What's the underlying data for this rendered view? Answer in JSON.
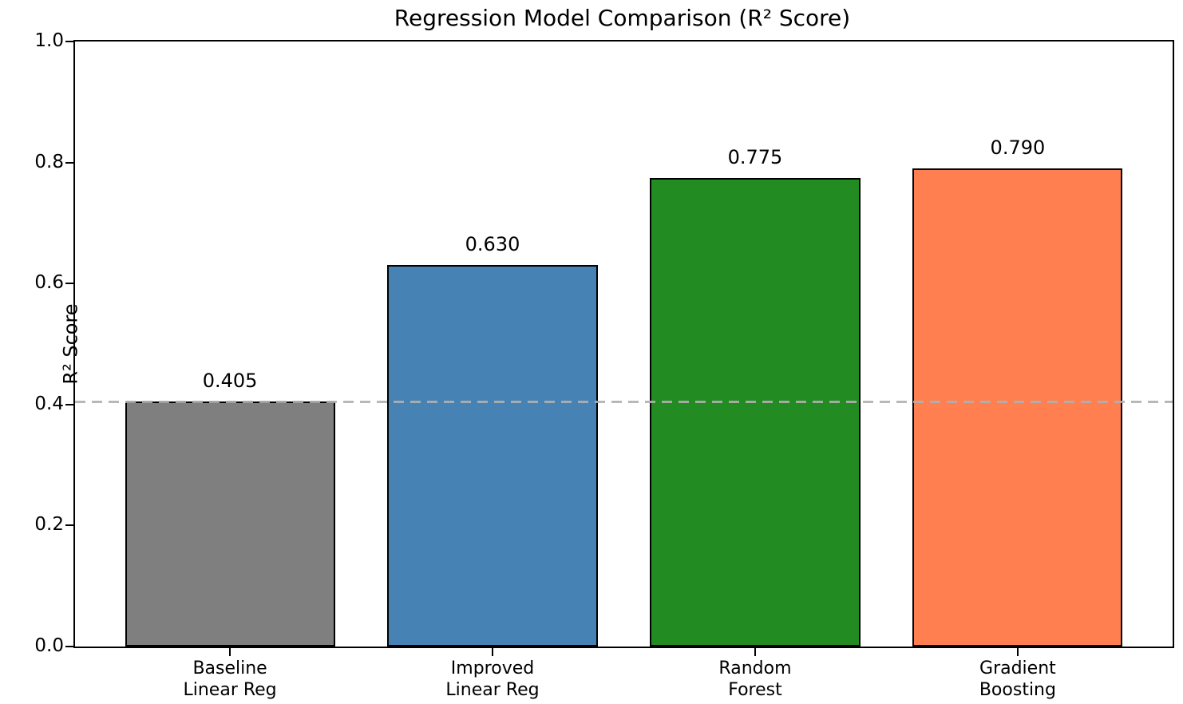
{
  "figure": {
    "background_color": "#ffffff",
    "spine_color": "#000000"
  },
  "chart_data": {
    "type": "bar",
    "title": "Regression Model Comparison (R² Score)",
    "ylabel": "R² Score",
    "xlabel": "",
    "ylim": [
      0.0,
      1.0
    ],
    "yticks": [
      "0.0",
      "0.2",
      "0.4",
      "0.6",
      "0.8",
      "1.0"
    ],
    "grid": false,
    "categories": [
      "Baseline\nLinear Reg",
      "Improved\nLinear Reg",
      "Random\nForest",
      "Gradient\nBoosting"
    ],
    "category_lines": [
      [
        "Baseline",
        "Linear Reg"
      ],
      [
        "Improved",
        "Linear Reg"
      ],
      [
        "Random",
        "Forest"
      ],
      [
        "Gradient",
        "Boosting"
      ]
    ],
    "values": [
      0.405,
      0.63,
      0.775,
      0.79
    ],
    "value_labels": [
      "0.405",
      "0.630",
      "0.775",
      "0.790"
    ],
    "bar_colors": [
      "#7f7f7f",
      "#4682b4",
      "#228b22",
      "#ff7f50"
    ],
    "bar_edge_color": "#000000",
    "baseline": {
      "y": 0.405,
      "style": "dashed",
      "color": "#b0b0b0"
    }
  }
}
